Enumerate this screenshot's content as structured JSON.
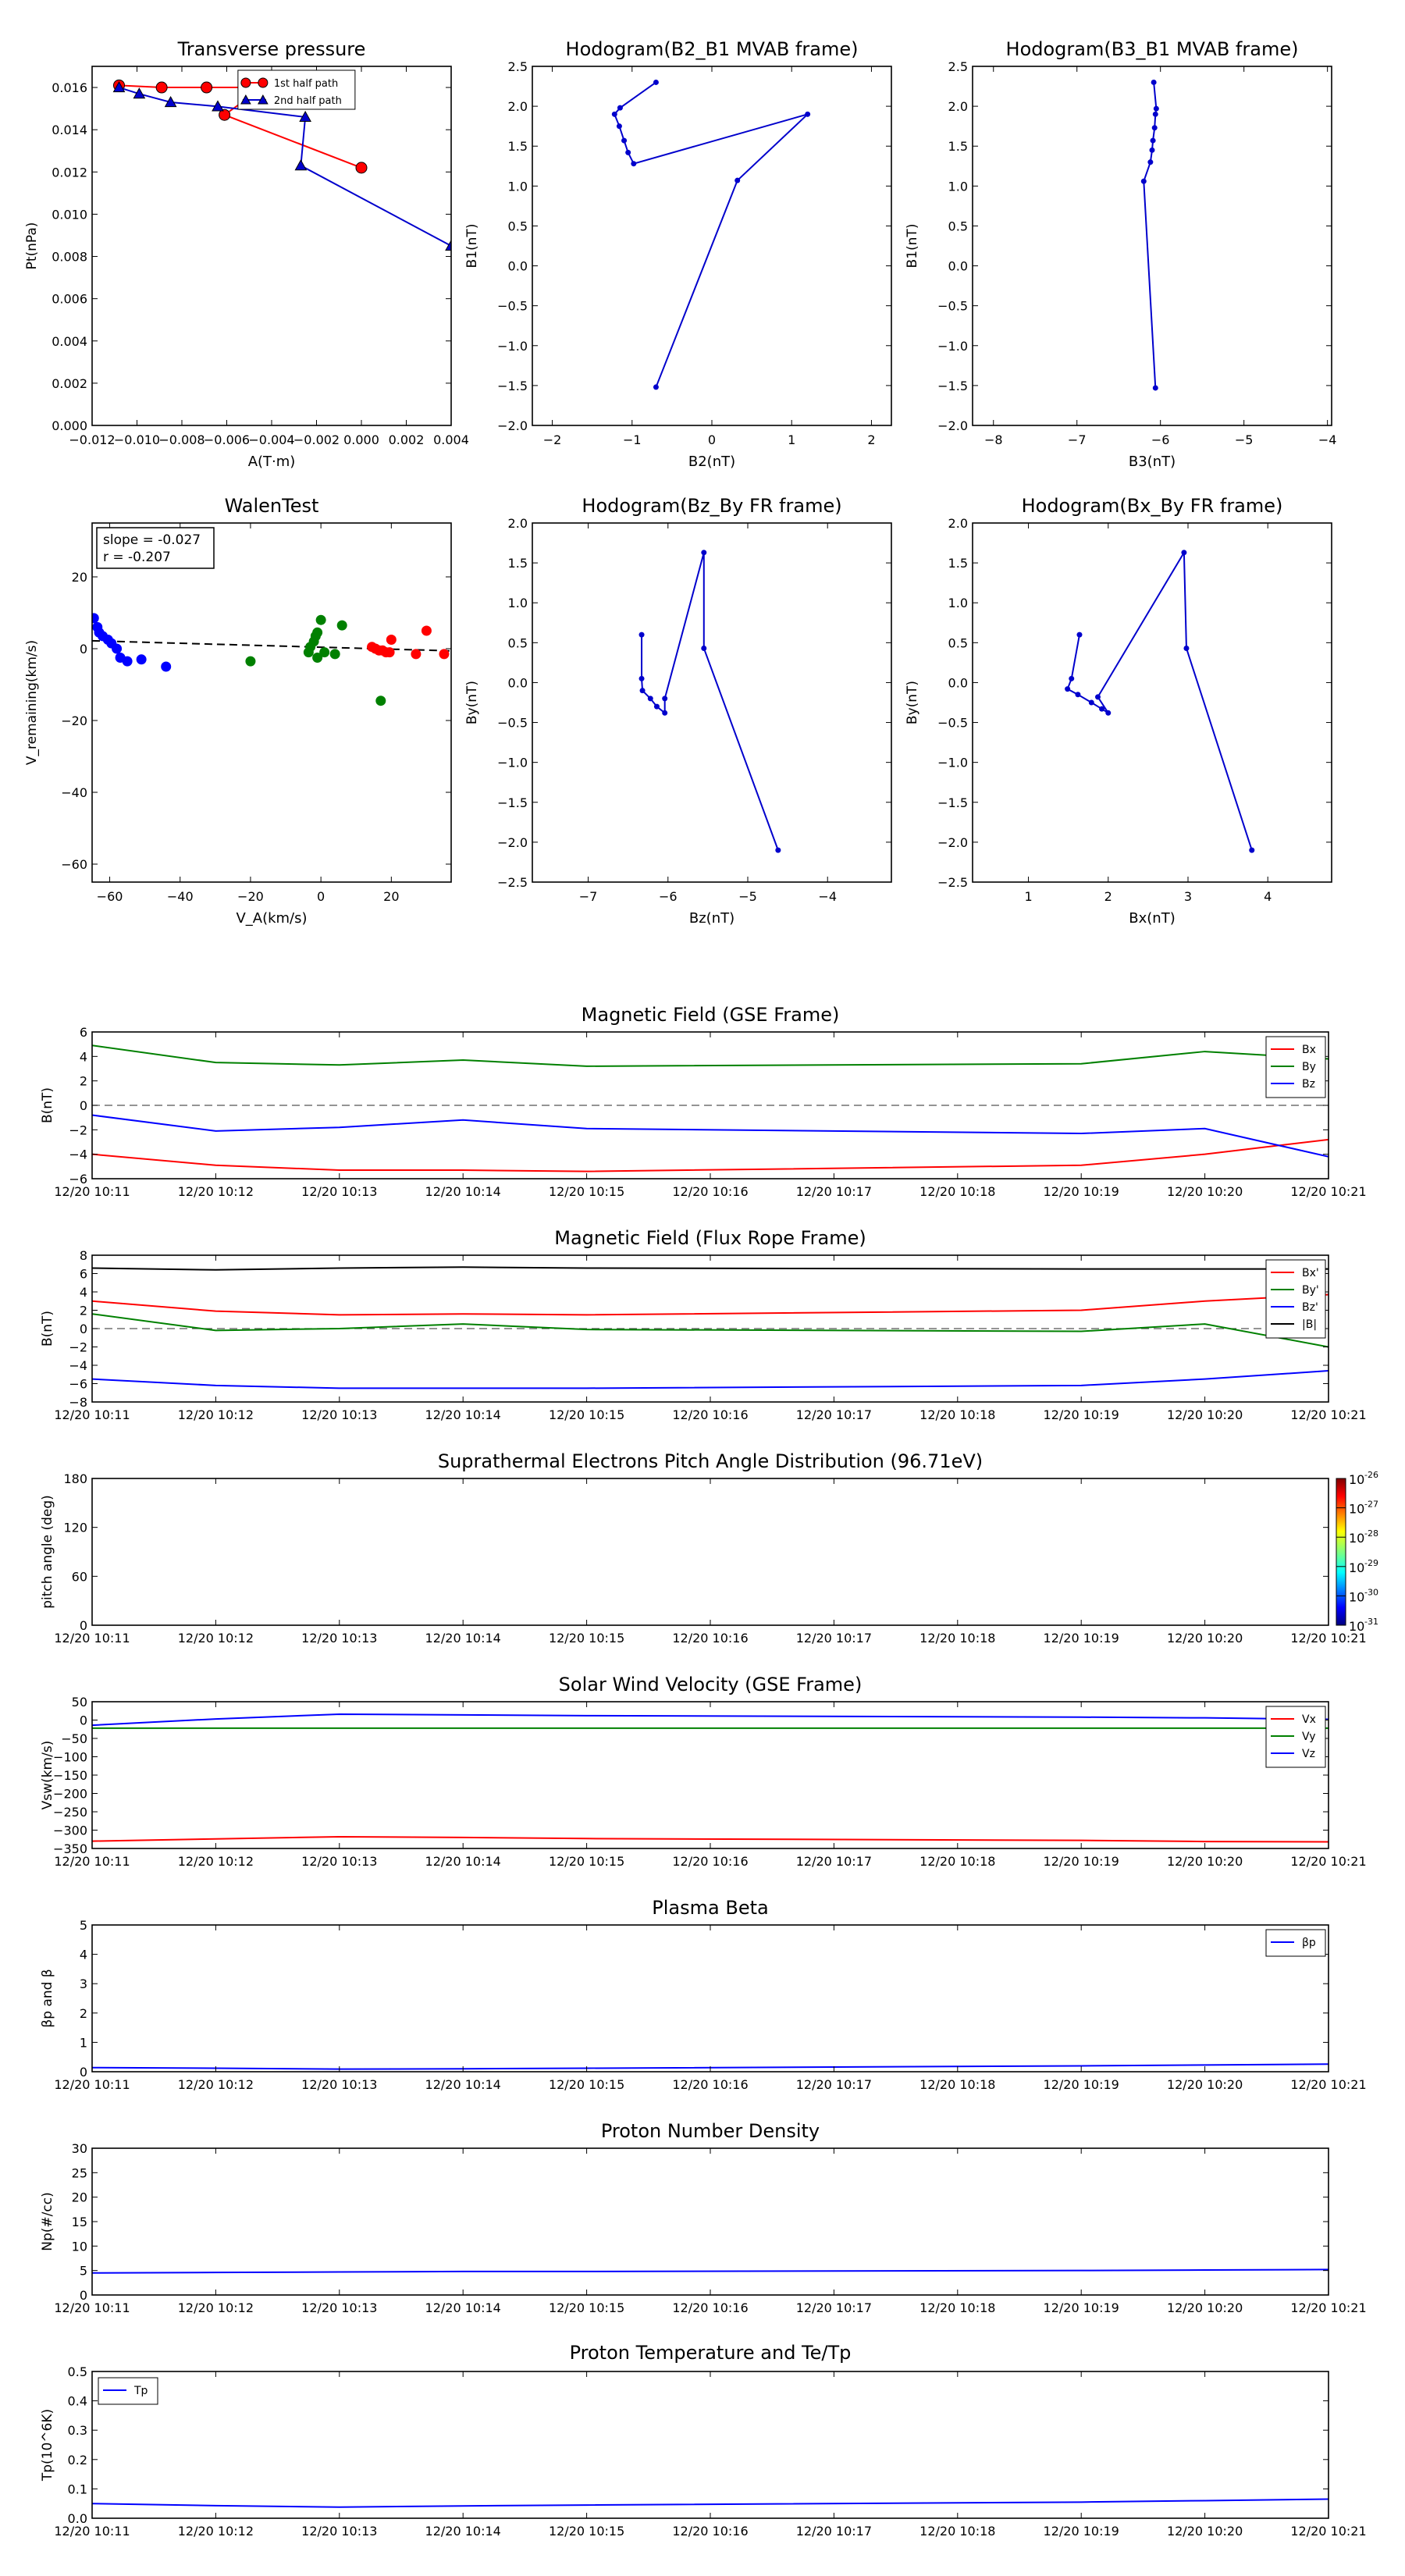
{
  "chart_data": [
    {
      "id": "transverse",
      "type": "scatter",
      "title": "Transverse pressure",
      "xlabel": "A(T·m)",
      "ylabel": "Pt(nPa)",
      "xlim": [
        -0.012,
        0.004
      ],
      "ylim": [
        0.0,
        0.017
      ],
      "xticks": [
        -0.012,
        -0.01,
        -0.008,
        -0.006,
        -0.004,
        -0.002,
        0.0,
        0.002,
        0.004
      ],
      "xtick_labels": [
        "−0.012",
        "−0.010",
        "−0.008",
        "−0.006",
        "−0.004",
        "−0.002",
        "0.000",
        "0.002",
        "0.004"
      ],
      "yticks": [
        0.0,
        0.002,
        0.004,
        0.006,
        0.008,
        0.01,
        0.012,
        0.014,
        0.016
      ],
      "ytick_labels": [
        "0.000",
        "0.002",
        "0.004",
        "0.006",
        "0.008",
        "0.010",
        "0.012",
        "0.014",
        "0.016"
      ],
      "legend_position": "top-right",
      "series": [
        {
          "name": "1st half path",
          "color": "#ff0000",
          "marker": "circle",
          "x": [
            -0.0,
            -0.0061,
            -0.0044,
            -0.0069,
            -0.0089,
            -0.0108
          ],
          "y": [
            0.0122,
            0.0147,
            0.016,
            0.016,
            0.016,
            0.0161
          ]
        },
        {
          "name": "2nd half path",
          "color": "#0000cc",
          "marker": "triangle",
          "x": [
            0.004,
            -0.0027,
            -0.0025,
            -0.0064,
            -0.0085,
            -0.0099,
            -0.0108
          ],
          "y": [
            0.0085,
            0.0123,
            0.0146,
            0.0151,
            0.0153,
            0.0157,
            0.016
          ]
        }
      ]
    },
    {
      "id": "hodo_b2b1",
      "type": "line",
      "title": "Hodogram(B2_B1 MVAB frame)",
      "xlabel": "B2(nT)",
      "ylabel": "B1(nT)",
      "xlim": [
        -2.25,
        2.25
      ],
      "ylim": [
        -2.0,
        2.5
      ],
      "xticks": [
        -2,
        -1,
        0,
        1,
        2
      ],
      "xtick_labels": [
        "−2",
        "−1",
        "0",
        "1",
        "2"
      ],
      "yticks": [
        -2.0,
        -1.5,
        -1.0,
        -0.5,
        0.0,
        0.5,
        1.0,
        1.5,
        2.0,
        2.5
      ],
      "ytick_labels": [
        "−2.0",
        "−1.5",
        "−1.0",
        "−0.5",
        "0.0",
        "0.5",
        "1.0",
        "1.5",
        "2.0",
        "2.5"
      ],
      "series": [
        {
          "color": "#0000cc",
          "x": [
            -0.7,
            -1.15,
            -1.22,
            -1.16,
            -1.1,
            -1.05,
            -0.98,
            1.2,
            0.32,
            -0.7
          ],
          "y": [
            2.3,
            1.98,
            1.9,
            1.75,
            1.57,
            1.42,
            1.28,
            1.9,
            1.07,
            -1.52
          ]
        }
      ]
    },
    {
      "id": "hodo_b3b1",
      "type": "line",
      "title": "Hodogram(B3_B1 MVAB frame)",
      "xlabel": "B3(nT)",
      "ylabel": "B1(nT)",
      "xlim": [
        -8.25,
        -3.95
      ],
      "ylim": [
        -2.0,
        2.5
      ],
      "xticks": [
        -8,
        -7,
        -6,
        -5,
        -4
      ],
      "xtick_labels": [
        "−8",
        "−7",
        "−6",
        "−5",
        "−4"
      ],
      "yticks": [
        -2.0,
        -1.5,
        -1.0,
        -0.5,
        0.0,
        0.5,
        1.0,
        1.5,
        2.0,
        2.5
      ],
      "ytick_labels": [
        "−2.0",
        "−1.5",
        "−1.0",
        "−0.5",
        "0.0",
        "0.5",
        "1.0",
        "1.5",
        "2.0",
        "2.5"
      ],
      "series": [
        {
          "color": "#0000cc",
          "x": [
            -6.08,
            -6.05,
            -6.06,
            -6.07,
            -6.09,
            -6.1,
            -6.12,
            -6.2,
            -6.06
          ],
          "y": [
            2.3,
            1.97,
            1.9,
            1.73,
            1.57,
            1.45,
            1.3,
            1.06,
            -1.53
          ]
        }
      ]
    },
    {
      "id": "walen",
      "type": "scatter",
      "title": "WalenTest",
      "xlabel": "V_A(km/s)",
      "ylabel": "V_remaining(km/s)",
      "annotation": [
        "slope = -0.027",
        "r = -0.207"
      ],
      "xlim": [
        -65,
        37
      ],
      "ylim": [
        -65,
        35
      ],
      "xticks": [
        -60,
        -40,
        -20,
        0,
        20
      ],
      "xtick_labels": [
        "−60",
        "−40",
        "−20",
        "0",
        "20"
      ],
      "yticks": [
        -60,
        -40,
        -20,
        0,
        20
      ],
      "ytick_labels": [
        "−60",
        "−40",
        "−20",
        "0",
        "20"
      ],
      "fit_line": {
        "slope": -0.027,
        "x": [
          -65,
          37
        ],
        "y": [
          2.2,
          -0.6
        ]
      },
      "series": [
        {
          "color": "#0000ff",
          "x": [
            -64.5,
            -63.5,
            -63,
            -62,
            -60.5,
            -59.5,
            -58,
            -57,
            -55,
            -51,
            -44
          ],
          "y": [
            8.5,
            6,
            4.5,
            3.5,
            2.5,
            1.5,
            0,
            -2.5,
            -3.5,
            -3,
            -5
          ]
        },
        {
          "color": "#008000",
          "x": [
            -20,
            -3.5,
            -3,
            -2,
            -1.5,
            -1,
            0,
            -1,
            1,
            4,
            6,
            17
          ],
          "y": [
            -3.5,
            -1,
            0.5,
            2,
            3.5,
            4.5,
            8,
            -2.5,
            -1,
            -1.5,
            6.5,
            -14.5
          ]
        },
        {
          "color": "#ff0000",
          "x": [
            14.5,
            15.5,
            16.5,
            17.5,
            18.5,
            19.5,
            20,
            27,
            30,
            35
          ],
          "y": [
            0.5,
            0,
            -0.5,
            -0.5,
            -1,
            -1,
            2.5,
            -1.5,
            5,
            -1.5
          ]
        }
      ]
    },
    {
      "id": "hodo_bzby",
      "type": "line",
      "title": "Hodogram(Bz_By FR frame)",
      "xlabel": "Bz(nT)",
      "ylabel": "By(nT)",
      "xlim": [
        -7.7,
        -3.2
      ],
      "ylim": [
        -2.5,
        2.0
      ],
      "xticks": [
        -7,
        -6,
        -5,
        -4
      ],
      "xtick_labels": [
        "−7",
        "−6",
        "−5",
        "−4"
      ],
      "yticks": [
        -2.5,
        -2.0,
        -1.5,
        -1.0,
        -0.5,
        0.0,
        0.5,
        1.0,
        1.5,
        2.0
      ],
      "ytick_labels": [
        "−2.5",
        "−2.0",
        "−1.5",
        "−1.0",
        "−0.5",
        "0.0",
        "0.5",
        "1.0",
        "1.5",
        "2.0"
      ],
      "series": [
        {
          "color": "#0000cc",
          "x": [
            -6.33,
            -6.33,
            -6.32,
            -6.22,
            -6.14,
            -6.04,
            -6.04,
            -5.55,
            -5.55,
            -4.62
          ],
          "y": [
            0.6,
            0.05,
            -0.1,
            -0.2,
            -0.3,
            -0.38,
            -0.2,
            1.63,
            0.43,
            -2.1
          ]
        }
      ]
    },
    {
      "id": "hodo_bxby",
      "type": "line",
      "title": "Hodogram(Bx_By FR frame)",
      "xlabel": "Bx(nT)",
      "ylabel": "By(nT)",
      "xlim": [
        0.3,
        4.8
      ],
      "ylim": [
        -2.5,
        2.0
      ],
      "xticks": [
        1,
        2,
        3,
        4
      ],
      "xtick_labels": [
        "1",
        "2",
        "3",
        "4"
      ],
      "yticks": [
        -2.5,
        -2.0,
        -1.5,
        -1.0,
        -0.5,
        0.0,
        0.5,
        1.0,
        1.5,
        2.0
      ],
      "ytick_labels": [
        "−2.5",
        "−2.0",
        "−1.5",
        "−1.0",
        "−0.5",
        "0.0",
        "0.5",
        "1.0",
        "1.5",
        "2.0"
      ],
      "series": [
        {
          "color": "#0000cc",
          "x": [
            1.64,
            1.54,
            1.49,
            1.62,
            1.79,
            1.92,
            2.0,
            1.87,
            2.95,
            2.98,
            3.8
          ],
          "y": [
            0.6,
            0.05,
            -0.08,
            -0.15,
            -0.25,
            -0.33,
            -0.38,
            -0.18,
            1.63,
            0.43,
            -2.1
          ]
        }
      ]
    },
    {
      "id": "bgse",
      "type": "line",
      "title": "Magnetic Field (GSE Frame)",
      "xlabel": "",
      "ylabel": "B(nT)",
      "xlim": [
        0,
        10
      ],
      "ylim": [
        -6,
        6
      ],
      "xtick_labels": [
        "12/20 10:11",
        "12/20 10:12",
        "12/20 10:13",
        "12/20 10:14",
        "12/20 10:15",
        "12/20 10:16",
        "12/20 10:17",
        "12/20 10:18",
        "12/20 10:19",
        "12/20 10:20",
        "12/20 10:21"
      ],
      "yticks": [
        -6,
        -4,
        -2,
        0,
        2,
        4,
        6
      ],
      "ytick_labels": [
        "−6",
        "−4",
        "−2",
        "0",
        "2",
        "4",
        "6"
      ],
      "zero_line": true,
      "legend_position": "top-right",
      "x": [
        0,
        1,
        2,
        3,
        4,
        8,
        9,
        10
      ],
      "series": [
        {
          "name": "Bx",
          "color": "#ff0000",
          "values": [
            -4.0,
            -4.9,
            -5.3,
            -5.3,
            -5.4,
            -4.9,
            -4.0,
            -2.8
          ]
        },
        {
          "name": "By",
          "color": "#008000",
          "values": [
            4.9,
            3.5,
            3.3,
            3.7,
            3.2,
            3.4,
            4.4,
            3.8
          ]
        },
        {
          "name": "Bz",
          "color": "#0000ff",
          "values": [
            -0.8,
            -2.1,
            -1.8,
            -1.2,
            -1.9,
            -2.3,
            -1.9,
            -4.2
          ]
        }
      ]
    },
    {
      "id": "bfr",
      "type": "line",
      "title": "Magnetic Field (Flux Rope Frame)",
      "xlabel": "",
      "ylabel": "B(nT)",
      "xlim": [
        0,
        10
      ],
      "ylim": [
        -8,
        8
      ],
      "xtick_labels": [
        "12/20 10:11",
        "12/20 10:12",
        "12/20 10:13",
        "12/20 10:14",
        "12/20 10:15",
        "12/20 10:16",
        "12/20 10:17",
        "12/20 10:18",
        "12/20 10:19",
        "12/20 10:20",
        "12/20 10:21"
      ],
      "yticks": [
        -8,
        -6,
        -4,
        -2,
        0,
        2,
        4,
        6,
        8
      ],
      "ytick_labels": [
        "−8",
        "−6",
        "−4",
        "−2",
        "0",
        "2",
        "4",
        "6",
        "8"
      ],
      "zero_line": true,
      "legend_position": "top-right",
      "x": [
        0,
        1,
        2,
        3,
        4,
        8,
        9,
        10
      ],
      "series": [
        {
          "name": "Bx'",
          "color": "#ff0000",
          "values": [
            3.0,
            1.9,
            1.5,
            1.6,
            1.5,
            2.0,
            3.0,
            3.7
          ]
        },
        {
          "name": "By'",
          "color": "#008000",
          "values": [
            1.6,
            -0.2,
            0.0,
            0.5,
            -0.1,
            -0.3,
            0.5,
            -2.0
          ]
        },
        {
          "name": "Bz'",
          "color": "#0000ff",
          "values": [
            -5.5,
            -6.2,
            -6.5,
            -6.5,
            -6.5,
            -6.2,
            -5.5,
            -4.6
          ]
        },
        {
          "name": "|B|",
          "color": "#000000",
          "values": [
            6.6,
            6.4,
            6.6,
            6.7,
            6.6,
            6.5,
            6.5,
            6.5
          ]
        }
      ]
    },
    {
      "id": "pad",
      "type": "heatmap",
      "title": "Suprathermal Electrons Pitch Angle Distribution (96.71eV)",
      "xlabel": "",
      "ylabel": "pitch angle (deg)",
      "xlim": [
        0,
        10
      ],
      "ylim": [
        0,
        180
      ],
      "xtick_labels": [
        "12/20 10:11",
        "12/20 10:12",
        "12/20 10:13",
        "12/20 10:14",
        "12/20 10:15",
        "12/20 10:16",
        "12/20 10:17",
        "12/20 10:18",
        "12/20 10:19",
        "12/20 10:20",
        "12/20 10:21"
      ],
      "yticks": [
        0,
        60,
        120,
        180
      ],
      "ytick_labels": [
        "0",
        "60",
        "120",
        "180"
      ],
      "colorbar": {
        "scale": "log",
        "range": [
          1e-31,
          1e-26
        ],
        "labels": [
          "10",
          "10",
          "10",
          "10",
          "10",
          "10"
        ],
        "exponents": [
          "-26",
          "-27",
          "-28",
          "-29",
          "-30",
          "-31"
        ]
      }
    },
    {
      "id": "vsw",
      "type": "line",
      "title": "Solar Wind Velocity (GSE Frame)",
      "xlabel": "",
      "ylabel": "Vsw(km/s)",
      "xlim": [
        0,
        10
      ],
      "ylim": [
        -350,
        50
      ],
      "xtick_labels": [
        "12/20 10:11",
        "12/20 10:12",
        "12/20 10:13",
        "12/20 10:14",
        "12/20 10:15",
        "12/20 10:16",
        "12/20 10:17",
        "12/20 10:18",
        "12/20 10:19",
        "12/20 10:20",
        "12/20 10:21"
      ],
      "yticks": [
        -350,
        -300,
        -250,
        -200,
        -150,
        -100,
        -50,
        0,
        50
      ],
      "ytick_labels": [
        "−350",
        "−300",
        "−250",
        "−200",
        "−150",
        "−100",
        "−50",
        "0",
        "50"
      ],
      "legend_position": "top-right",
      "x": [
        0,
        1,
        2,
        3,
        4,
        8,
        9,
        10
      ],
      "series": [
        {
          "name": "Vx",
          "color": "#ff0000",
          "values": [
            -330,
            -324,
            -318,
            -320,
            -323,
            -328,
            -331,
            -332
          ]
        },
        {
          "name": "Vy",
          "color": "#008000",
          "values": [
            -22,
            -22,
            -22,
            -22,
            -22,
            -22,
            -22,
            -22
          ]
        },
        {
          "name": "Vz",
          "color": "#0000ff",
          "values": [
            -14,
            3,
            16,
            14,
            12,
            8,
            6,
            2
          ]
        }
      ]
    },
    {
      "id": "beta",
      "type": "line",
      "title": "Plasma Beta",
      "xlabel": "",
      "ylabel": "βp and β",
      "xlim": [
        0,
        10
      ],
      "ylim": [
        0,
        5
      ],
      "xtick_labels": [
        "12/20 10:11",
        "12/20 10:12",
        "12/20 10:13",
        "12/20 10:14",
        "12/20 10:15",
        "12/20 10:16",
        "12/20 10:17",
        "12/20 10:18",
        "12/20 10:19",
        "12/20 10:20",
        "12/20 10:21"
      ],
      "yticks": [
        0,
        1,
        2,
        3,
        4,
        5
      ],
      "ytick_labels": [
        "0",
        "1",
        "2",
        "3",
        "4",
        "5"
      ],
      "legend_position": "top-right",
      "x": [
        0,
        1,
        2,
        3,
        4,
        8,
        9,
        10
      ],
      "series": [
        {
          "name": "βp",
          "color": "#0000ff",
          "values": [
            0.14,
            0.12,
            0.09,
            0.1,
            0.12,
            0.2,
            0.23,
            0.26
          ]
        }
      ]
    },
    {
      "id": "np",
      "type": "line",
      "title": "Proton Number Density",
      "xlabel": "",
      "ylabel": "Np(#/cc)",
      "xlim": [
        0,
        10
      ],
      "ylim": [
        0,
        30
      ],
      "xtick_labels": [
        "12/20 10:11",
        "12/20 10:12",
        "12/20 10:13",
        "12/20 10:14",
        "12/20 10:15",
        "12/20 10:16",
        "12/20 10:17",
        "12/20 10:18",
        "12/20 10:19",
        "12/20 10:20",
        "12/20 10:21"
      ],
      "yticks": [
        0,
        5,
        10,
        15,
        20,
        25,
        30
      ],
      "ytick_labels": [
        "0",
        "5",
        "10",
        "15",
        "20",
        "25",
        "30"
      ],
      "x": [
        0,
        1,
        2,
        3,
        4,
        8,
        9,
        10
      ],
      "series": [
        {
          "color": "#0000ff",
          "values": [
            4.5,
            4.6,
            4.7,
            4.8,
            4.8,
            5.0,
            5.1,
            5.2
          ]
        }
      ]
    },
    {
      "id": "tp",
      "type": "line",
      "title": "Proton Temperature and Te/Tp",
      "xlabel": "",
      "ylabel": "Tp(10^6K)",
      "xlim": [
        0,
        10
      ],
      "ylim": [
        0,
        0.5
      ],
      "xtick_labels": [
        "12/20 10:11",
        "12/20 10:12",
        "12/20 10:13",
        "12/20 10:14",
        "12/20 10:15",
        "12/20 10:16",
        "12/20 10:17",
        "12/20 10:18",
        "12/20 10:19",
        "12/20 10:20",
        "12/20 10:21"
      ],
      "yticks": [
        0.0,
        0.1,
        0.2,
        0.3,
        0.4,
        0.5
      ],
      "ytick_labels": [
        "0.0",
        "0.1",
        "0.2",
        "0.3",
        "0.4",
        "0.5"
      ],
      "legend_position": "top-left",
      "x": [
        0,
        1,
        2,
        3,
        4,
        8,
        9,
        10
      ],
      "series": [
        {
          "name": "Tp",
          "color": "#0000ff",
          "values": [
            0.05,
            0.043,
            0.038,
            0.042,
            0.045,
            0.055,
            0.06,
            0.065
          ]
        }
      ]
    }
  ]
}
